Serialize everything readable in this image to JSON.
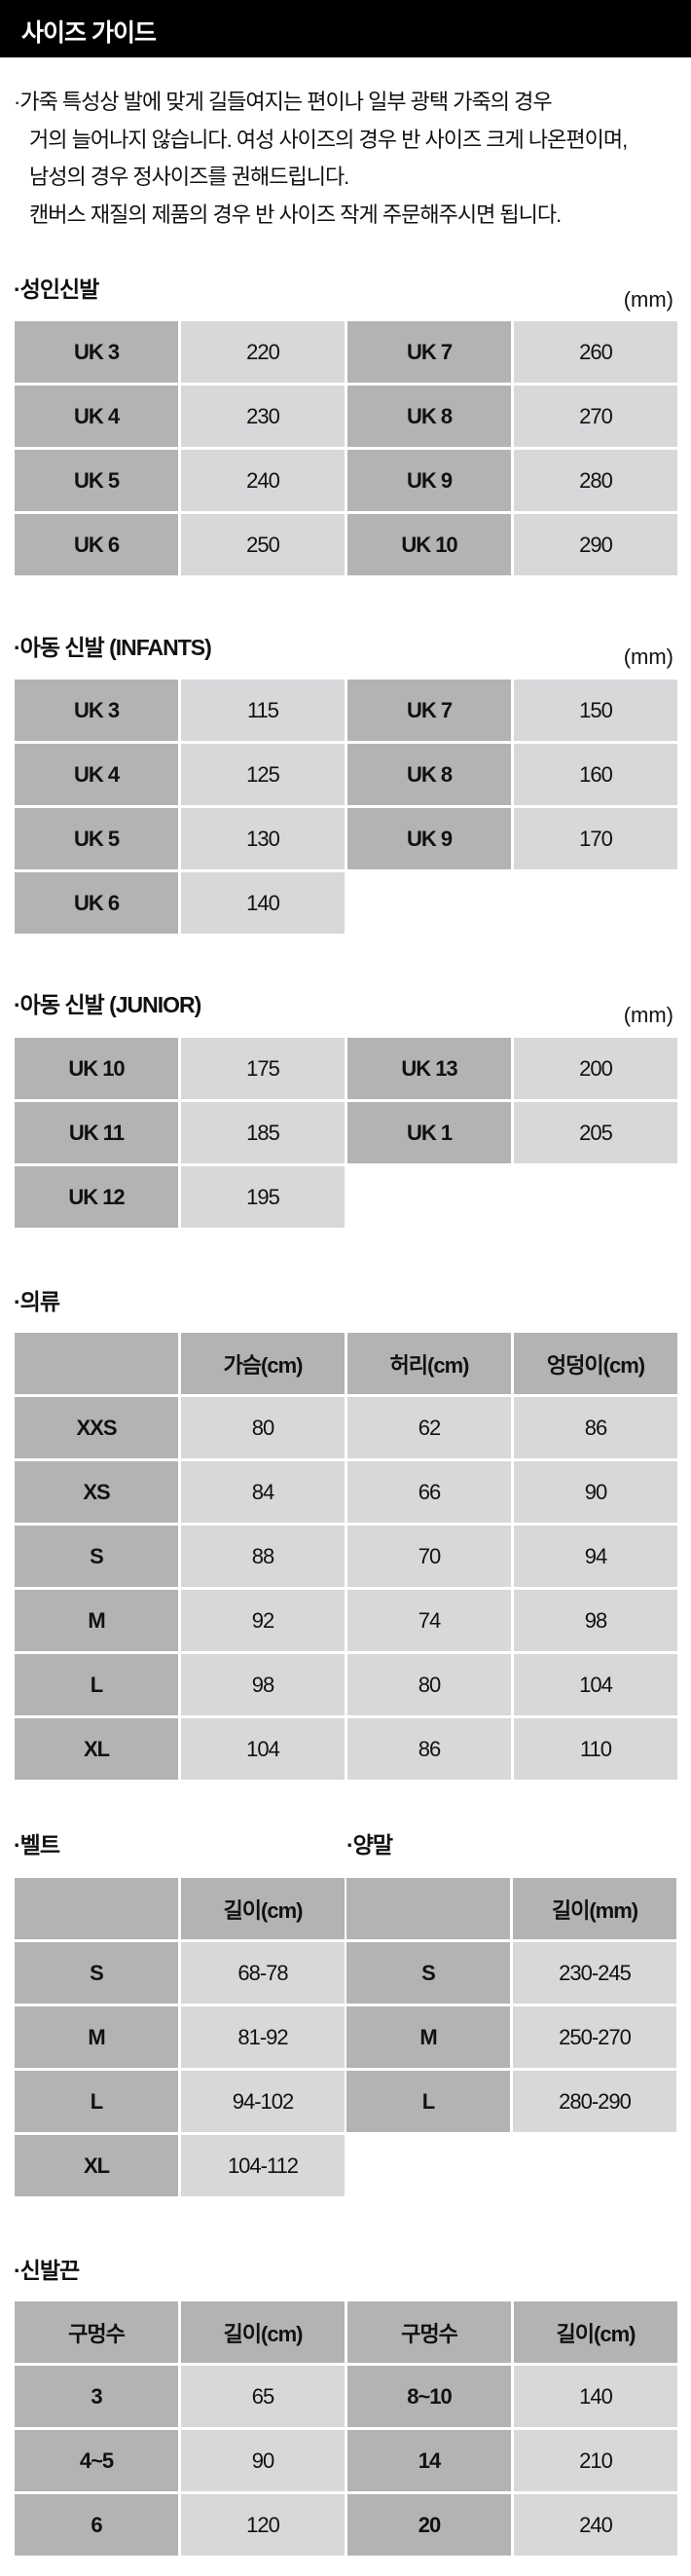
{
  "header": {
    "title": "사이즈 가이드"
  },
  "notes": [
    "가죽 특성상 발에 맞게 길들여지는 편이나 일부 광택 가죽의 경우",
    "거의 늘어나지 않습니다. 여성 사이즈의 경우 반 사이즈 크게 나온편이며,",
    "남성의 경우 정사이즈를 권해드립니다.",
    "캔버스 재질의 제품의 경우 반 사이즈 작게 주문해주시면 됩니다."
  ],
  "bullet": "·",
  "colors": {
    "header_bg": "#000000",
    "label_cell": "#b3b3b3",
    "value_cell": "#d8d7da"
  },
  "sections": [
    {
      "title": "·성인신발",
      "unit": "(mm)",
      "dark_cols": [
        0,
        2
      ],
      "header_row": false,
      "rows": [
        [
          "UK 3",
          "220",
          "UK 7",
          "260"
        ],
        [
          "UK 4",
          "230",
          "UK 8",
          "270"
        ],
        [
          "UK 5",
          "240",
          "UK 9",
          "280"
        ],
        [
          "UK 6",
          "250",
          "UK 10",
          "290"
        ]
      ]
    },
    {
      "title": "·아동 신발 (INFANTS)",
      "unit": "(mm)",
      "dark_cols": [
        0,
        2
      ],
      "header_row": false,
      "rows": [
        [
          "UK 3",
          "115",
          "UK 7",
          "150"
        ],
        [
          "UK 4",
          "125",
          "UK 8",
          "160"
        ],
        [
          "UK 5",
          "130",
          "UK 9",
          "170"
        ],
        [
          "UK 6",
          "140",
          null,
          null
        ]
      ]
    },
    {
      "title": "·아동 신발 (JUNIOR)",
      "unit": "(mm)",
      "dark_cols": [
        0,
        2
      ],
      "header_row": false,
      "rows": [
        [
          "UK 10",
          "175",
          "UK 13",
          "200"
        ],
        [
          "UK 11",
          "185",
          "UK 1",
          "205"
        ],
        [
          "UK 12",
          "195",
          null,
          null
        ]
      ]
    },
    {
      "title": "·의류",
      "dark_cols": [
        0
      ],
      "header_row": true,
      "rows": [
        [
          "",
          "가슴(cm)",
          "허리(cm)",
          "엉덩이(cm)"
        ],
        [
          "XXS",
          "80",
          "62",
          "86"
        ],
        [
          "XS",
          "84",
          "66",
          "90"
        ],
        [
          "S",
          "88",
          "70",
          "94"
        ],
        [
          "M",
          "92",
          "74",
          "98"
        ],
        [
          "L",
          "98",
          "80",
          "104"
        ],
        [
          "XL",
          "104",
          "86",
          "110"
        ]
      ]
    },
    {
      "title": "·벨트",
      "dark_cols": [
        0
      ],
      "header_row": true,
      "rows": [
        [
          "",
          "길이(cm)"
        ],
        [
          "S",
          "68-78"
        ],
        [
          "M",
          "81-92"
        ],
        [
          "L",
          "94-102"
        ],
        [
          "XL",
          "104-112"
        ]
      ]
    },
    {
      "title": "·양말",
      "dark_cols": [
        0
      ],
      "header_row": true,
      "rows": [
        [
          "",
          "길이(mm)"
        ],
        [
          "S",
          "230-245"
        ],
        [
          "M",
          "250-270"
        ],
        [
          "L",
          "280-290"
        ]
      ]
    },
    {
      "title": "·신발끈",
      "dark_cols": [
        0,
        2
      ],
      "header_row": true,
      "rows": [
        [
          "구멍수",
          "길이(cm)",
          "구멍수",
          "길이(cm)"
        ],
        [
          "3",
          "65",
          "8~10",
          "140"
        ],
        [
          "4~5",
          "90",
          "14",
          "210"
        ],
        [
          "6",
          "120",
          "20",
          "240"
        ]
      ]
    }
  ]
}
